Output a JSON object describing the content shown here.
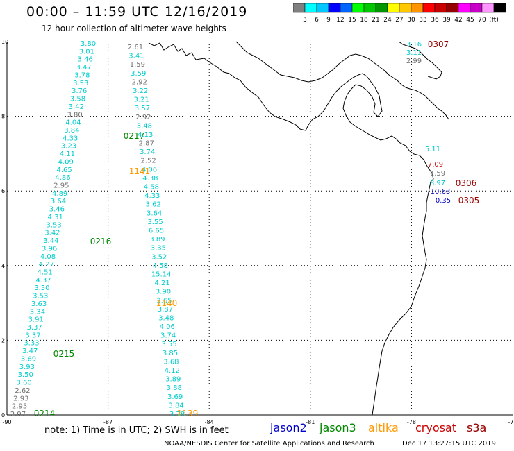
{
  "title": "00:00 – 11:59 UTC 12/16/2019",
  "subtitle": "12 hour collection of altimeter wave heights",
  "colorbar": {
    "colors": [
      "#808080",
      "#00ffff",
      "#00c8ff",
      "#0000ff",
      "#0064ff",
      "#00ff00",
      "#00c800",
      "#009600",
      "#ffff00",
      "#ffc800",
      "#ff9600",
      "#ff0000",
      "#c80000",
      "#960000",
      "#ff00ff",
      "#c800c8",
      "#ff96ff",
      "#000000"
    ],
    "labels": [
      "3",
      "6",
      "9",
      "12",
      "15",
      "18",
      "21",
      "24",
      "27",
      "30",
      "33",
      "36",
      "39",
      "42",
      "45",
      "70",
      "(ft)"
    ]
  },
  "axes": {
    "x_ticks": [
      "-90",
      "-87",
      "-84",
      "-81",
      "-78",
      "-75"
    ],
    "y_ticks": [
      "0",
      "2",
      "4",
      "6",
      "8",
      "10"
    ]
  },
  "satellite_colors": {
    "jason2": "#0000cc",
    "jason3": "#008800",
    "altika": "#ff9900",
    "cryosat": "#cc0000",
    "s3a": "#990000",
    "track": "#00cccc",
    "low": "#707070"
  },
  "passes": [
    {
      "label": "0307",
      "color": "#990000"
    },
    {
      "label": "0217",
      "color": "#008800"
    },
    {
      "label": "1141",
      "color": "#ff9900"
    },
    {
      "label": "0306",
      "color": "#990000"
    },
    {
      "label": "0305",
      "color": "#990000"
    },
    {
      "label": "0216",
      "color": "#008800"
    },
    {
      "label": "1140",
      "color": "#ff9900"
    },
    {
      "label": "0215",
      "color": "#008800"
    },
    {
      "label": "0214",
      "color": "#008800"
    },
    {
      "label": "1139",
      "color": "#ff9900"
    }
  ],
  "track_a": {
    "values": [
      "3.80",
      "3.01",
      "3.46",
      "3.47",
      "3.78",
      "3.53",
      "3.76",
      "3.58",
      "3.42",
      "3.80",
      "4.04",
      "3.84",
      "4.33",
      "3.23",
      "4.11",
      "4.09",
      "4.65",
      "4.86",
      "2.95",
      "4.89",
      "3.64",
      "3.46",
      "4.31",
      "3.53",
      "3.42",
      "3.44",
      "3.96",
      "4.08",
      "4.27",
      "4.51",
      "4.37",
      "3.30",
      "3.53",
      "3.63",
      "3.34",
      "3.91",
      "3.37",
      "3.37",
      "3.33",
      "3.47",
      "3.69",
      "3.93",
      "3.50",
      "3.60",
      "2.62",
      "2.93",
      "2.95",
      "2.97"
    ],
    "colors": [
      "c",
      "c",
      "c",
      "c",
      "c",
      "c",
      "c",
      "c",
      "c",
      "g",
      "c",
      "c",
      "c",
      "c",
      "c",
      "c",
      "c",
      "c",
      "g",
      "c",
      "c",
      "c",
      "c",
      "c",
      "c",
      "c",
      "c",
      "c",
      "c",
      "c",
      "c",
      "c",
      "c",
      "c",
      "c",
      "c",
      "c",
      "c",
      "c",
      "c",
      "c",
      "c",
      "c",
      "c",
      "g",
      "g",
      "g",
      "g"
    ]
  },
  "track_b": {
    "values": [
      "2.61",
      "3.41",
      "1.59",
      "3.59",
      "2.92",
      "3.22",
      "3.21",
      "3.57",
      "2.92",
      "3.48",
      "4.13",
      "2.87",
      "3.74",
      "2.52",
      "4.06",
      "4.38",
      "4.58",
      "4.33",
      "3.62",
      "3.64",
      "3.55",
      "6.65",
      "3.89",
      "3.35",
      "3.52",
      "4.58",
      "15.14",
      "4.21",
      "3.90",
      "3.65",
      "3.87",
      "3.48",
      "4.06",
      "3.74",
      "3.55",
      "3.85",
      "3.68",
      "4.12",
      "3.89",
      "3.88",
      "3.69",
      "3.84",
      "3.78"
    ],
    "colors": [
      "g",
      "c",
      "g",
      "c",
      "g",
      "c",
      "c",
      "c",
      "g",
      "c",
      "c",
      "g",
      "c",
      "g",
      "c",
      "c",
      "c",
      "c",
      "c",
      "c",
      "c",
      "c",
      "c",
      "c",
      "c",
      "c",
      "c",
      "c",
      "c",
      "c",
      "c",
      "c",
      "c",
      "c",
      "c",
      "c",
      "c",
      "c",
      "c",
      "c",
      "c",
      "c",
      "c"
    ]
  },
  "east_values": {
    "top": [
      "3.16",
      "3.11",
      "2.99"
    ],
    "top_colors": [
      "c",
      "c",
      "g"
    ],
    "coast": [
      "5.11",
      "7.09",
      "1.59",
      "8.97",
      "10.63",
      "0.35"
    ],
    "coast_colors": [
      "c",
      "r",
      "g",
      "c",
      "b",
      "b"
    ]
  },
  "legend": [
    {
      "label": "jason2",
      "color": "#0000cc"
    },
    {
      "label": "jason3",
      "color": "#008800"
    },
    {
      "label": "altika",
      "color": "#ff9900"
    },
    {
      "label": "cryosat",
      "color": "#cc0000"
    },
    {
      "label": "s3a",
      "color": "#990000"
    }
  ],
  "footnote": "note:  1) Time is in UTC;  2) SWH is in feet",
  "credit": "NOAA/NESDIS Center for Satellite Applications and Research",
  "timestamp": "Dec 17 13:27:15 UTC 2019"
}
